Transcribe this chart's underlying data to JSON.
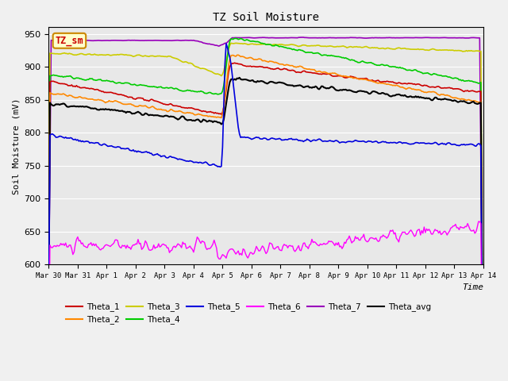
{
  "title": "TZ Soil Moisture",
  "xlabel": "Time",
  "ylabel": "Soil Moisture (mV)",
  "ylim": [
    600,
    960
  ],
  "yticks": [
    600,
    650,
    700,
    750,
    800,
    850,
    900,
    950
  ],
  "legend_label": "TZ_sm",
  "bg_color": "#e8e8e8",
  "fig_color": "#f0f0f0",
  "colors": {
    "Theta_1": "#cc0000",
    "Theta_2": "#ff8800",
    "Theta_3": "#cccc00",
    "Theta_4": "#00cc00",
    "Theta_5": "#0000dd",
    "Theta_6": "#ff00ff",
    "Theta_7": "#9900bb",
    "Theta_avg": "#000000"
  },
  "date_labels": [
    "Mar 30",
    "Mar 31",
    "Apr 1",
    "Apr 2",
    "Apr 3",
    "Apr 4",
    "Apr 5",
    "Apr 6",
    "Apr 7",
    "Apr 8",
    "Apr 9",
    "Apr 10",
    "Apr 11",
    "Apr 12",
    "Apr 13",
    "Apr 14"
  ],
  "date_ticks": [
    0,
    24,
    48,
    72,
    96,
    120,
    144,
    168,
    192,
    216,
    240,
    264,
    288,
    312,
    336,
    360
  ]
}
